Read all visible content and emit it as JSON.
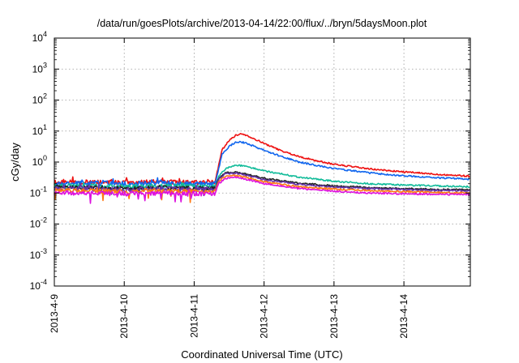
{
  "chart_data": {
    "type": "line",
    "title": "/data/run/goesPlots/archive/2013-04-14/22:00/flux/../bryn/5daysMoon.plot",
    "xlabel": "Coordinated Universal Time (UTC)",
    "ylabel": "cGy/day",
    "yscale": "log",
    "ylim": [
      0.0001,
      10000
    ],
    "xlim": [
      0,
      5.95
    ],
    "grid": true,
    "legend": "none",
    "y_ticks": [
      {
        "value": 0.0001,
        "base": "10",
        "exp": "-4"
      },
      {
        "value": 0.001,
        "base": "10",
        "exp": "-3"
      },
      {
        "value": 0.01,
        "base": "10",
        "exp": "-2"
      },
      {
        "value": 0.1,
        "base": "10",
        "exp": "-1"
      },
      {
        "value": 1,
        "base": "10",
        "exp": "0"
      },
      {
        "value": 10,
        "base": "10",
        "exp": "1"
      },
      {
        "value": 100,
        "base": "10",
        "exp": "2"
      },
      {
        "value": 1000,
        "base": "10",
        "exp": "3"
      },
      {
        "value": 10000,
        "base": "10",
        "exp": "4"
      }
    ],
    "x_ticks": [
      {
        "value": 0,
        "label": "2013-4-9"
      },
      {
        "value": 1,
        "label": "2013-4-10"
      },
      {
        "value": 2,
        "label": "2013-4-11"
      },
      {
        "value": 3,
        "label": "2013-4-12"
      },
      {
        "value": 4,
        "label": "2013-4-13"
      },
      {
        "value": 5,
        "label": "2013-4-14"
      }
    ],
    "x_units": "days from 2013-4-9 00:00 UTC",
    "series": [
      {
        "color": "#ee1111",
        "points": [
          [
            0,
            0.22
          ],
          [
            0.5,
            0.23
          ],
          [
            1,
            0.22
          ],
          [
            1.5,
            0.23
          ],
          [
            2,
            0.22
          ],
          [
            2.3,
            0.22
          ],
          [
            2.35,
            0.8
          ],
          [
            2.4,
            2.5
          ],
          [
            2.5,
            5
          ],
          [
            2.6,
            7.5
          ],
          [
            2.7,
            8.2
          ],
          [
            2.8,
            6.5
          ],
          [
            3,
            4
          ],
          [
            3.25,
            2.3
          ],
          [
            3.5,
            1.5
          ],
          [
            3.75,
            1.1
          ],
          [
            4,
            0.85
          ],
          [
            4.5,
            0.6
          ],
          [
            5,
            0.48
          ],
          [
            5.5,
            0.4
          ],
          [
            5.95,
            0.35
          ]
        ]
      },
      {
        "color": "#1166ee",
        "points": [
          [
            0,
            0.2
          ],
          [
            0.5,
            0.21
          ],
          [
            1,
            0.2
          ],
          [
            1.5,
            0.21
          ],
          [
            2,
            0.2
          ],
          [
            2.3,
            0.2
          ],
          [
            2.35,
            0.6
          ],
          [
            2.4,
            1.8
          ],
          [
            2.5,
            3.2
          ],
          [
            2.6,
            4.5
          ],
          [
            2.7,
            4.3
          ],
          [
            2.8,
            3.6
          ],
          [
            3,
            2.4
          ],
          [
            3.25,
            1.5
          ],
          [
            3.5,
            1.0
          ],
          [
            3.75,
            0.78
          ],
          [
            4,
            0.62
          ],
          [
            4.5,
            0.45
          ],
          [
            5,
            0.36
          ],
          [
            5.5,
            0.31
          ],
          [
            5.95,
            0.28
          ]
        ]
      },
      {
        "color": "#11bb99",
        "points": [
          [
            0,
            0.17
          ],
          [
            0.5,
            0.17
          ],
          [
            1,
            0.16
          ],
          [
            1.5,
            0.17
          ],
          [
            2,
            0.16
          ],
          [
            2.3,
            0.16
          ],
          [
            2.35,
            0.35
          ],
          [
            2.45,
            0.62
          ],
          [
            2.6,
            0.8
          ],
          [
            2.75,
            0.72
          ],
          [
            3,
            0.52
          ],
          [
            3.5,
            0.33
          ],
          [
            4,
            0.24
          ],
          [
            4.5,
            0.2
          ],
          [
            5,
            0.18
          ],
          [
            5.5,
            0.17
          ],
          [
            5.95,
            0.16
          ]
        ]
      },
      {
        "color": "#222222",
        "points": [
          [
            0,
            0.15
          ],
          [
            0.5,
            0.15
          ],
          [
            1,
            0.14
          ],
          [
            1.5,
            0.15
          ],
          [
            2,
            0.14
          ],
          [
            2.3,
            0.14
          ],
          [
            2.35,
            0.3
          ],
          [
            2.45,
            0.45
          ],
          [
            2.6,
            0.47
          ],
          [
            2.8,
            0.38
          ],
          [
            3,
            0.3
          ],
          [
            3.5,
            0.21
          ],
          [
            4,
            0.17
          ],
          [
            4.5,
            0.15
          ],
          [
            5,
            0.14
          ],
          [
            5.5,
            0.13
          ],
          [
            5.95,
            0.13
          ]
        ]
      },
      {
        "color": "#6633aa",
        "points": [
          [
            0,
            0.14
          ],
          [
            0.5,
            0.14
          ],
          [
            1,
            0.13
          ],
          [
            1.5,
            0.14
          ],
          [
            2,
            0.13
          ],
          [
            2.3,
            0.13
          ],
          [
            2.35,
            0.28
          ],
          [
            2.45,
            0.42
          ],
          [
            2.6,
            0.44
          ],
          [
            2.8,
            0.35
          ],
          [
            3,
            0.27
          ],
          [
            3.5,
            0.19
          ],
          [
            4,
            0.155
          ],
          [
            4.5,
            0.14
          ],
          [
            5,
            0.13
          ],
          [
            5.5,
            0.12
          ],
          [
            5.95,
            0.12
          ]
        ]
      },
      {
        "color": "#ff7711",
        "points": [
          [
            0,
            0.12
          ],
          [
            0.5,
            0.12
          ],
          [
            1,
            0.115
          ],
          [
            1.5,
            0.12
          ],
          [
            2,
            0.115
          ],
          [
            2.3,
            0.115
          ],
          [
            2.35,
            0.24
          ],
          [
            2.45,
            0.35
          ],
          [
            2.6,
            0.37
          ],
          [
            2.8,
            0.3
          ],
          [
            3,
            0.23
          ],
          [
            3.5,
            0.16
          ],
          [
            4,
            0.135
          ],
          [
            4.5,
            0.12
          ],
          [
            5,
            0.112
          ],
          [
            5.5,
            0.105
          ],
          [
            5.95,
            0.1
          ]
        ]
      },
      {
        "color": "#dd11dd",
        "points": [
          [
            0,
            0.1
          ],
          [
            0.5,
            0.1
          ],
          [
            1,
            0.095
          ],
          [
            1.5,
            0.1
          ],
          [
            2,
            0.095
          ],
          [
            2.3,
            0.095
          ],
          [
            2.35,
            0.2
          ],
          [
            2.45,
            0.3
          ],
          [
            2.6,
            0.32
          ],
          [
            2.8,
            0.26
          ],
          [
            3,
            0.2
          ],
          [
            3.5,
            0.14
          ],
          [
            4,
            0.115
          ],
          [
            4.5,
            0.1
          ],
          [
            5,
            0.095
          ],
          [
            5.5,
            0.09
          ],
          [
            5.95,
            0.09
          ]
        ]
      }
    ]
  }
}
